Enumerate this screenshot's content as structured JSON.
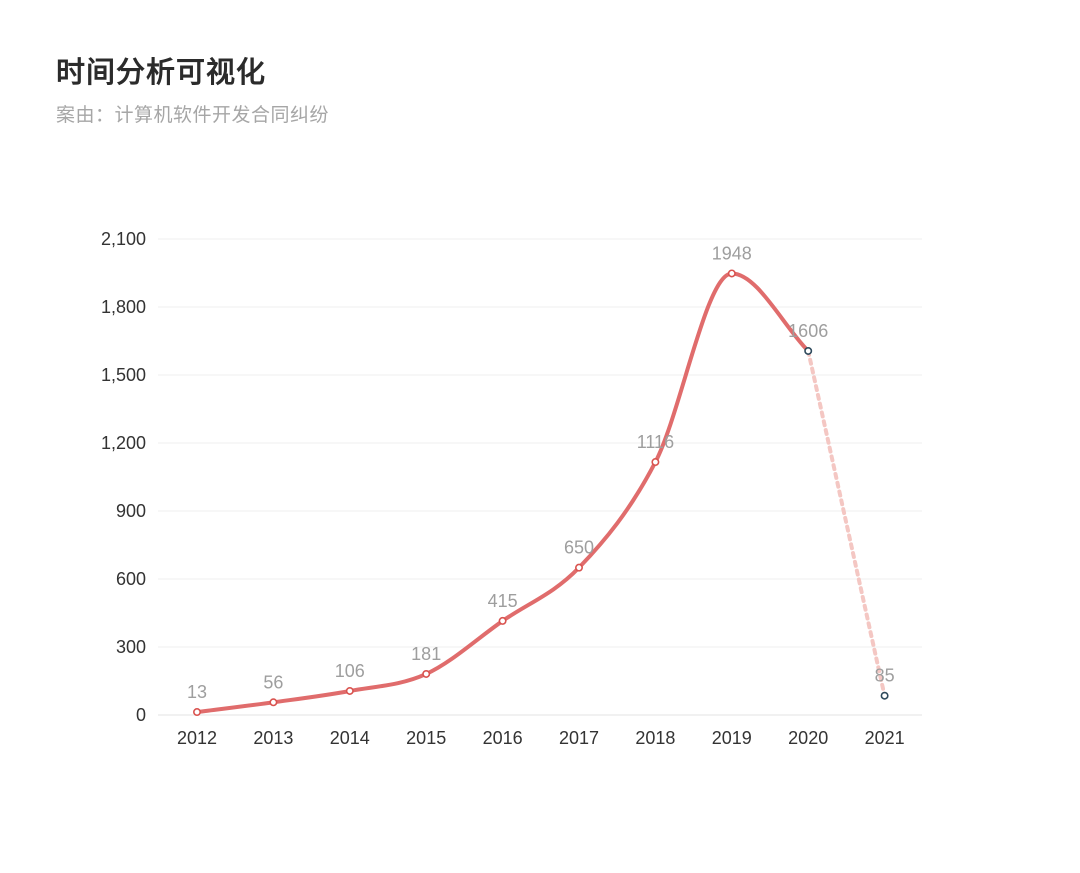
{
  "header": {
    "title": "时间分析可视化",
    "subtitle": "案由：计算机软件开发合同纠纷"
  },
  "colors": {
    "line": "#e06c6c",
    "forecast_line": "#f4c7c3",
    "marker_fill": "#ffffff",
    "marker_stroke_actual": "#d9534f",
    "marker_stroke_partial": "#2f4a5c",
    "grid": "#efefef",
    "tick_text": "#333333",
    "data_label_text": "#9e9e9e"
  },
  "chart_data": {
    "type": "line",
    "title": "时间分析可视化",
    "subtitle": "案由：计算机软件开发合同纠纷",
    "xlabel": "",
    "ylabel": "",
    "categories": [
      "2012",
      "2013",
      "2014",
      "2015",
      "2016",
      "2017",
      "2018",
      "2019",
      "2020",
      "2021"
    ],
    "series": [
      {
        "values": [
          13,
          56,
          106,
          181,
          415,
          650,
          1116,
          1948,
          1606,
          85
        ],
        "data_labels": [
          "13",
          "56",
          "106",
          "181",
          "415",
          "650",
          "1116",
          "1948",
          "1606",
          "85"
        ],
        "solid_through_index": 8,
        "dashed_from_index": 8
      }
    ],
    "ylim": [
      0,
      2100
    ],
    "yticks": [
      0,
      300,
      600,
      900,
      1200,
      1500,
      1800,
      2100
    ],
    "ytick_labels": [
      "0",
      "300",
      "600",
      "900",
      "1,200",
      "1,500",
      "1,800",
      "2,100"
    ],
    "grid": true,
    "legend": "none",
    "smooth": true
  }
}
